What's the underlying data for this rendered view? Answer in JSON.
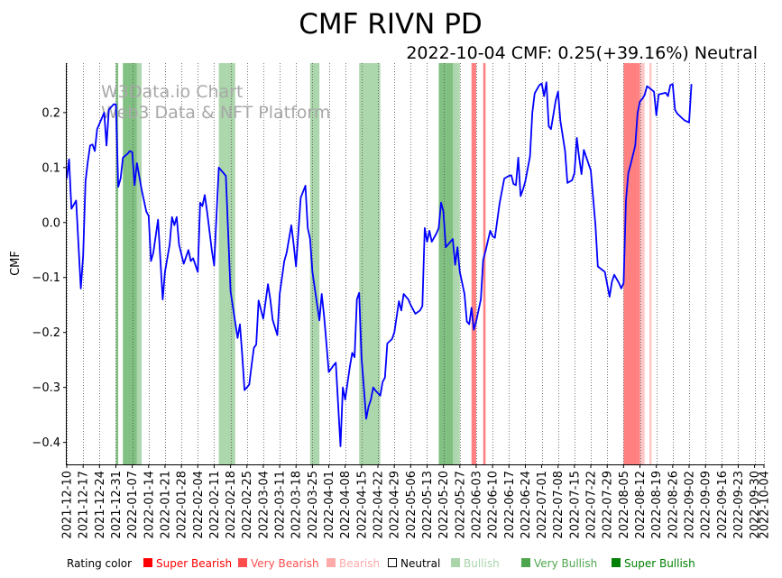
{
  "chart_data": {
    "type": "line",
    "title": "CMF RIVN PD",
    "subtitle": "2022-10-04 CMF: 0.25(+39.16%) Neutral",
    "ylabel": "CMF",
    "xlabel": "",
    "watermark": [
      "W3Data.io Chart",
      "Web3 Data & NFT Platform"
    ],
    "xlim": [
      "2021-12-10",
      "2022-10-04"
    ],
    "ylim": [
      -0.44,
      0.29
    ],
    "y_ticks": [
      0.2,
      0.1,
      0.0,
      -0.1,
      -0.2,
      -0.3,
      -0.4
    ],
    "y_tick_labels": [
      "0.2",
      "0.1",
      "0.0",
      "−0.1",
      "−0.2",
      "−0.3",
      "−0.4"
    ],
    "x_ticks": [
      "2021-12-10",
      "2021-12-17",
      "2021-12-24",
      "2021-12-31",
      "2022-01-07",
      "2022-01-14",
      "2022-01-21",
      "2022-01-28",
      "2022-02-04",
      "2022-02-11",
      "2022-02-18",
      "2022-02-25",
      "2022-03-04",
      "2022-03-11",
      "2022-03-18",
      "2022-03-25",
      "2022-04-01",
      "2022-04-08",
      "2022-04-15",
      "2022-04-22",
      "2022-04-29",
      "2022-05-06",
      "2022-05-13",
      "2022-05-20",
      "2022-05-27",
      "2022-06-03",
      "2022-06-10",
      "2022-06-17",
      "2022-06-24",
      "2022-07-01",
      "2022-07-08",
      "2022-07-15",
      "2022-07-22",
      "2022-07-29",
      "2022-08-05",
      "2022-08-12",
      "2022-08-19",
      "2022-08-26",
      "2022-09-02",
      "2022-09-09",
      "2022-09-16",
      "2022-09-23",
      "2022-09-30",
      "2022-10-04"
    ],
    "series": [
      {
        "name": "CMF",
        "color": "#0000ff",
        "points": [
          [
            "2021-12-10",
            0.08
          ],
          [
            "2021-12-11",
            0.115
          ],
          [
            "2021-12-12",
            0.025
          ],
          [
            "2021-12-14",
            0.04
          ],
          [
            "2021-12-16",
            -0.12
          ],
          [
            "2021-12-17",
            -0.06
          ],
          [
            "2021-12-18",
            0.075
          ],
          [
            "2021-12-19",
            0.11
          ],
          [
            "2021-12-20",
            0.14
          ],
          [
            "2021-12-21",
            0.142
          ],
          [
            "2021-12-22",
            0.13
          ],
          [
            "2021-12-23",
            0.17
          ],
          [
            "2021-12-24",
            0.18
          ],
          [
            "2021-12-26",
            0.2
          ],
          [
            "2021-12-27",
            0.14
          ],
          [
            "2021-12-28",
            0.205
          ],
          [
            "2021-12-30",
            0.215
          ],
          [
            "2021-12-31",
            0.215
          ],
          [
            "2022-01-01",
            0.065
          ],
          [
            "2022-01-02",
            0.08
          ],
          [
            "2022-01-03",
            0.118
          ],
          [
            "2022-01-05",
            0.125
          ],
          [
            "2022-01-06",
            0.13
          ],
          [
            "2022-01-07",
            0.128
          ],
          [
            "2022-01-08",
            0.068
          ],
          [
            "2022-01-09",
            0.108
          ],
          [
            "2022-01-11",
            0.06
          ],
          [
            "2022-01-13",
            0.02
          ],
          [
            "2022-01-14",
            0.012
          ],
          [
            "2022-01-15",
            -0.07
          ],
          [
            "2022-01-16",
            -0.055
          ],
          [
            "2022-01-18",
            0.005
          ],
          [
            "2022-01-20",
            -0.14
          ],
          [
            "2022-01-21",
            -0.09
          ],
          [
            "2022-01-23",
            -0.04
          ],
          [
            "2022-01-24",
            0.01
          ],
          [
            "2022-01-25",
            -0.005
          ],
          [
            "2022-01-26",
            0.01
          ],
          [
            "2022-01-27",
            -0.04
          ],
          [
            "2022-01-29",
            -0.075
          ],
          [
            "2022-01-31",
            -0.05
          ],
          [
            "2022-02-01",
            -0.07
          ],
          [
            "2022-02-02",
            -0.065
          ],
          [
            "2022-02-04",
            -0.09
          ],
          [
            "2022-02-05",
            0.036
          ],
          [
            "2022-02-06",
            0.03
          ],
          [
            "2022-02-07",
            0.05
          ],
          [
            "2022-02-08",
            0.02
          ],
          [
            "2022-02-10",
            -0.05
          ],
          [
            "2022-02-11",
            -0.078
          ],
          [
            "2022-02-13",
            0.1
          ],
          [
            "2022-02-16",
            0.085
          ],
          [
            "2022-02-18",
            -0.125
          ],
          [
            "2022-02-21",
            -0.21
          ],
          [
            "2022-02-22",
            -0.185
          ],
          [
            "2022-02-23",
            -0.24
          ],
          [
            "2022-02-24",
            -0.305
          ],
          [
            "2022-02-25",
            -0.3
          ],
          [
            "2022-02-26",
            -0.295
          ],
          [
            "2022-02-27",
            -0.26
          ],
          [
            "2022-02-28",
            -0.228
          ],
          [
            "2022-03-01",
            -0.222
          ],
          [
            "2022-03-02",
            -0.142
          ],
          [
            "2022-03-04",
            -0.175
          ],
          [
            "2022-03-06",
            -0.112
          ],
          [
            "2022-03-07",
            -0.14
          ],
          [
            "2022-03-08",
            -0.177
          ],
          [
            "2022-03-10",
            -0.205
          ],
          [
            "2022-03-11",
            -0.13
          ],
          [
            "2022-03-13",
            -0.07
          ],
          [
            "2022-03-14",
            -0.055
          ],
          [
            "2022-03-16",
            -0.005
          ],
          [
            "2022-03-17",
            -0.04
          ],
          [
            "2022-03-18",
            -0.08
          ],
          [
            "2022-03-20",
            0.045
          ],
          [
            "2022-03-22",
            0.067
          ],
          [
            "2022-03-23",
            -0.01
          ],
          [
            "2022-03-24",
            -0.03
          ],
          [
            "2022-03-25",
            -0.09
          ],
          [
            "2022-03-28",
            -0.178
          ],
          [
            "2022-03-29",
            -0.13
          ],
          [
            "2022-03-30",
            -0.17
          ],
          [
            "2022-03-31",
            -0.22
          ],
          [
            "2022-04-01",
            -0.272
          ],
          [
            "2022-04-03",
            -0.26
          ],
          [
            "2022-04-04",
            -0.255
          ],
          [
            "2022-04-06",
            -0.407
          ],
          [
            "2022-04-07",
            -0.3
          ],
          [
            "2022-04-08",
            -0.322
          ],
          [
            "2022-04-10",
            -0.262
          ],
          [
            "2022-04-11",
            -0.237
          ],
          [
            "2022-04-12",
            -0.245
          ],
          [
            "2022-04-13",
            -0.14
          ],
          [
            "2022-04-14",
            -0.128
          ],
          [
            "2022-04-15",
            -0.245
          ],
          [
            "2022-04-16",
            -0.3
          ],
          [
            "2022-04-17",
            -0.357
          ],
          [
            "2022-04-18",
            -0.335
          ],
          [
            "2022-04-19",
            -0.322
          ],
          [
            "2022-04-20",
            -0.3
          ],
          [
            "2022-04-21",
            -0.306
          ],
          [
            "2022-04-23",
            -0.315
          ],
          [
            "2022-04-24",
            -0.29
          ],
          [
            "2022-04-25",
            -0.282
          ],
          [
            "2022-04-26",
            -0.22
          ],
          [
            "2022-04-28",
            -0.212
          ],
          [
            "2022-04-29",
            -0.2
          ],
          [
            "2022-05-01",
            -0.143
          ],
          [
            "2022-05-02",
            -0.16
          ],
          [
            "2022-05-03",
            -0.13
          ],
          [
            "2022-05-05",
            -0.14
          ],
          [
            "2022-05-06",
            -0.15
          ],
          [
            "2022-05-08",
            -0.166
          ],
          [
            "2022-05-10",
            -0.16
          ],
          [
            "2022-05-11",
            -0.152
          ],
          [
            "2022-05-12",
            -0.01
          ],
          [
            "2022-05-13",
            -0.035
          ],
          [
            "2022-05-14",
            -0.015
          ],
          [
            "2022-05-15",
            -0.035
          ],
          [
            "2022-05-17",
            -0.02
          ],
          [
            "2022-05-18",
            -0.01
          ],
          [
            "2022-05-19",
            0.036
          ],
          [
            "2022-05-20",
            0.02
          ],
          [
            "2022-05-21",
            -0.045
          ],
          [
            "2022-05-23",
            -0.035
          ],
          [
            "2022-05-24",
            -0.03
          ],
          [
            "2022-05-25",
            -0.077
          ],
          [
            "2022-05-26",
            -0.045
          ],
          [
            "2022-05-27",
            -0.09
          ],
          [
            "2022-05-29",
            -0.13
          ],
          [
            "2022-05-30",
            -0.18
          ],
          [
            "2022-05-31",
            -0.185
          ],
          [
            "2022-06-01",
            -0.155
          ],
          [
            "2022-06-02",
            -0.195
          ],
          [
            "2022-06-03",
            -0.18
          ],
          [
            "2022-06-05",
            -0.14
          ],
          [
            "2022-06-06",
            -0.068
          ],
          [
            "2022-06-07",
            -0.052
          ],
          [
            "2022-06-09",
            -0.015
          ],
          [
            "2022-06-10",
            -0.025
          ],
          [
            "2022-06-11",
            -0.028
          ],
          [
            "2022-06-13",
            0.035
          ],
          [
            "2022-06-15",
            0.08
          ],
          [
            "2022-06-17",
            0.085
          ],
          [
            "2022-06-18",
            0.086
          ],
          [
            "2022-06-19",
            0.07
          ],
          [
            "2022-06-20",
            0.068
          ],
          [
            "2022-06-21",
            0.118
          ],
          [
            "2022-06-22",
            0.048
          ],
          [
            "2022-06-23",
            0.06
          ],
          [
            "2022-06-24",
            0.075
          ],
          [
            "2022-06-26",
            0.12
          ],
          [
            "2022-06-27",
            0.2
          ],
          [
            "2022-06-28",
            0.235
          ],
          [
            "2022-06-30",
            0.25
          ],
          [
            "2022-07-01",
            0.253
          ],
          [
            "2022-07-02",
            0.23
          ],
          [
            "2022-07-03",
            0.255
          ],
          [
            "2022-07-04",
            0.175
          ],
          [
            "2022-07-05",
            0.17
          ],
          [
            "2022-07-07",
            0.222
          ],
          [
            "2022-07-08",
            0.238
          ],
          [
            "2022-07-09",
            0.185
          ],
          [
            "2022-07-11",
            0.13
          ],
          [
            "2022-07-12",
            0.072
          ],
          [
            "2022-07-14",
            0.077
          ],
          [
            "2022-07-15",
            0.09
          ],
          [
            "2022-07-16",
            0.154
          ],
          [
            "2022-07-17",
            0.118
          ],
          [
            "2022-07-18",
            0.088
          ],
          [
            "2022-07-19",
            0.132
          ],
          [
            "2022-07-22",
            0.095
          ],
          [
            "2022-07-24",
            -0.005
          ],
          [
            "2022-07-25",
            -0.08
          ],
          [
            "2022-07-28",
            -0.09
          ],
          [
            "2022-07-30",
            -0.135
          ],
          [
            "2022-07-31",
            -0.108
          ],
          [
            "2022-08-01",
            -0.095
          ],
          [
            "2022-08-03",
            -0.11
          ],
          [
            "2022-08-04",
            -0.12
          ],
          [
            "2022-08-05",
            -0.11
          ],
          [
            "2022-08-06",
            0.04
          ],
          [
            "2022-08-07",
            0.09
          ],
          [
            "2022-08-08",
            0.105
          ],
          [
            "2022-08-10",
            0.14
          ],
          [
            "2022-08-11",
            0.2
          ],
          [
            "2022-08-12",
            0.22
          ],
          [
            "2022-08-13",
            0.225
          ],
          [
            "2022-08-14",
            0.232
          ],
          [
            "2022-08-15",
            0.248
          ],
          [
            "2022-08-16",
            0.245
          ],
          [
            "2022-08-18",
            0.238
          ],
          [
            "2022-08-19",
            0.195
          ],
          [
            "2022-08-20",
            0.233
          ],
          [
            "2022-08-23",
            0.236
          ],
          [
            "2022-08-24",
            0.23
          ],
          [
            "2022-08-25",
            0.25
          ],
          [
            "2022-08-26",
            0.252
          ],
          [
            "2022-08-27",
            0.205
          ],
          [
            "2022-08-28",
            0.198
          ],
          [
            "2022-08-30",
            0.19
          ],
          [
            "2022-08-31",
            0.186
          ],
          [
            "2022-09-02",
            0.182
          ],
          [
            "2022-09-03",
            0.252
          ]
        ]
      }
    ],
    "rating_bands": [
      {
        "start": "2021-12-31",
        "end": "2022-01-01",
        "rating": "Very Bullish"
      },
      {
        "start": "2022-01-03",
        "end": "2022-01-05",
        "rating": "Very Bullish"
      },
      {
        "start": "2022-01-05",
        "end": "2022-01-09",
        "rating": "Very Bullish"
      },
      {
        "start": "2022-01-09",
        "end": "2022-01-10",
        "rating": "Bullish"
      },
      {
        "start": "2022-01-10",
        "end": "2022-01-11",
        "rating": "Bullish"
      },
      {
        "start": "2022-02-13",
        "end": "2022-02-16",
        "rating": "Bullish"
      },
      {
        "start": "2022-02-16",
        "end": "2022-02-20",
        "rating": "Bullish"
      },
      {
        "start": "2022-03-24",
        "end": "2022-03-28",
        "rating": "Bullish"
      },
      {
        "start": "2022-04-14",
        "end": "2022-04-23",
        "rating": "Bullish"
      },
      {
        "start": "2022-05-18",
        "end": "2022-05-24",
        "rating": "Very Bullish"
      },
      {
        "start": "2022-05-24",
        "end": "2022-05-26",
        "rating": "Bullish"
      },
      {
        "start": "2022-05-26",
        "end": "2022-05-27",
        "rating": "Bullish"
      },
      {
        "start": "2022-06-01",
        "end": "2022-06-03",
        "rating": "Very Bearish"
      },
      {
        "start": "2022-06-06",
        "end": "2022-06-07",
        "rating": "Very Bearish"
      },
      {
        "start": "2022-08-05",
        "end": "2022-08-11",
        "rating": "Very Bearish"
      },
      {
        "start": "2022-08-11",
        "end": "2022-08-12",
        "rating": "Very Bearish"
      },
      {
        "start": "2022-08-12",
        "end": "2022-08-14",
        "rating": "Bearish"
      },
      {
        "start": "2022-08-16",
        "end": "2022-08-17",
        "rating": "Bearish"
      }
    ],
    "legend": {
      "title": "Rating color",
      "items": [
        {
          "label": "Super Bearish",
          "color": "#ff0000"
        },
        {
          "label": "Very Bearish",
          "color": "#ff4d4d"
        },
        {
          "label": "Bearish",
          "color": "#ffaaaa"
        },
        {
          "label": "Neutral",
          "color": "#000000",
          "hollow": true
        },
        {
          "label": "Bullish",
          "color": "#aad4aa"
        },
        {
          "label": "Very Bullish",
          "color": "#4da64d"
        },
        {
          "label": "Super Bullish",
          "color": "#008000"
        }
      ]
    },
    "grid": {
      "x": true,
      "y": false,
      "style": "dotted"
    }
  }
}
